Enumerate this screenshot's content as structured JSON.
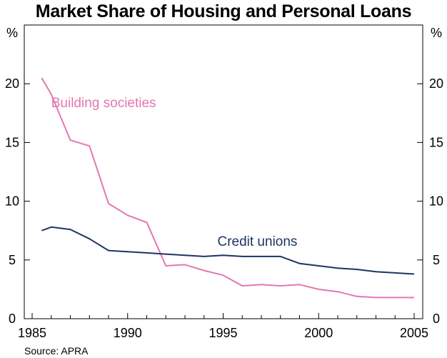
{
  "chart_data": {
    "type": "line",
    "title": "Market Share of Housing and Personal Loans",
    "ylabel_left": "%",
    "ylabel_right": "%",
    "xlabel": "",
    "xlim": [
      1985,
      2005
    ],
    "ylim": [
      0,
      25
    ],
    "x_ticks": [
      1985,
      1990,
      1995,
      2000,
      2005
    ],
    "x_tick_labels": [
      "1985",
      "1990",
      "1995",
      "2000",
      "2005"
    ],
    "y_ticks": [
      0,
      5,
      10,
      15,
      20
    ],
    "y_tick_labels": [
      "0",
      "5",
      "10",
      "15",
      "20"
    ],
    "grid": false,
    "legend": "inline annotations",
    "series": [
      {
        "name": "Building societies",
        "color": "#e377b0",
        "label_position": [
          1986.0,
          18.0
        ],
        "x": [
          1985.5,
          1986.0,
          1987.0,
          1988.0,
          1989.0,
          1990.0,
          1991.0,
          1992.0,
          1993.0,
          1994.0,
          1995.0,
          1996.0,
          1997.0,
          1998.0,
          1999.0,
          2000.0,
          2001.0,
          2002.0,
          2003.0,
          2004.0,
          2005.0
        ],
        "values": [
          20.5,
          19.1,
          15.2,
          14.7,
          9.8,
          8.8,
          8.2,
          4.5,
          4.6,
          4.1,
          3.7,
          2.8,
          2.9,
          2.8,
          2.9,
          2.5,
          2.3,
          1.9,
          1.8,
          1.8,
          1.8
        ]
      },
      {
        "name": "Credit unions",
        "color": "#1e3462",
        "label_position": [
          1994.7,
          6.2
        ],
        "x": [
          1985.5,
          1986.0,
          1987.0,
          1988.0,
          1989.0,
          1990.0,
          1991.0,
          1992.0,
          1993.0,
          1994.0,
          1995.0,
          1996.0,
          1997.0,
          1998.0,
          1999.0,
          2000.0,
          2001.0,
          2002.0,
          2003.0,
          2004.0,
          2005.0
        ],
        "values": [
          7.5,
          7.8,
          7.6,
          6.8,
          5.8,
          5.7,
          5.6,
          5.5,
          5.4,
          5.3,
          5.4,
          5.3,
          5.3,
          5.3,
          4.7,
          4.5,
          4.3,
          4.2,
          4.0,
          3.9,
          3.8
        ]
      }
    ]
  },
  "source": "Source: APRA"
}
